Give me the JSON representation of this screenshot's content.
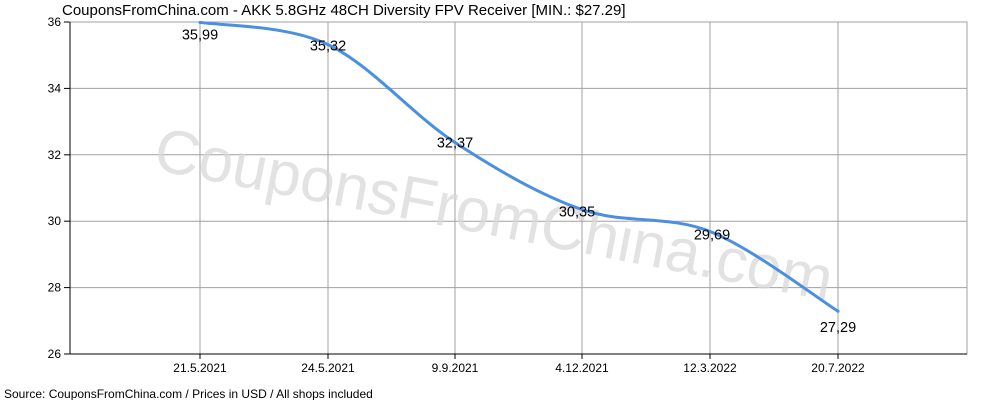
{
  "title": "CouponsFromChina.com - AKK 5.8GHz 48CH Diversity FPV Receiver [MIN.: $27.29]",
  "footer": "Source: CouponsFromChina.com / Prices in USD / All shops included",
  "watermark": "CouponsFromChina.com",
  "colors": {
    "line": "#4a8fe0",
    "grid": "#a0a0a0",
    "axis": "#000000",
    "background": "#ffffff",
    "plot_background": "#ffffff"
  },
  "chart_data": {
    "type": "line",
    "title": "CouponsFromChina.com - AKK 5.8GHz 48CH Diversity FPV Receiver [MIN.: $27.29]",
    "xlabel": "",
    "ylabel": "",
    "categories": [
      "21.5.2021",
      "24.5.2021",
      "9.9.2021",
      "4.12.2021",
      "12.3.2022",
      "20.7.2022"
    ],
    "series": [
      {
        "values": [
          35.99,
          35.32,
          32.37,
          30.35,
          29.69,
          27.29
        ]
      }
    ],
    "value_labels": [
      "35,99",
      "35,32",
      "32,37",
      "30,35",
      "29,69",
      "27,29"
    ],
    "yticks": [
      "26",
      "28",
      "30",
      "32",
      "34",
      "36"
    ],
    "ylim": [
      26,
      36
    ],
    "grid": true,
    "legend": "none"
  }
}
